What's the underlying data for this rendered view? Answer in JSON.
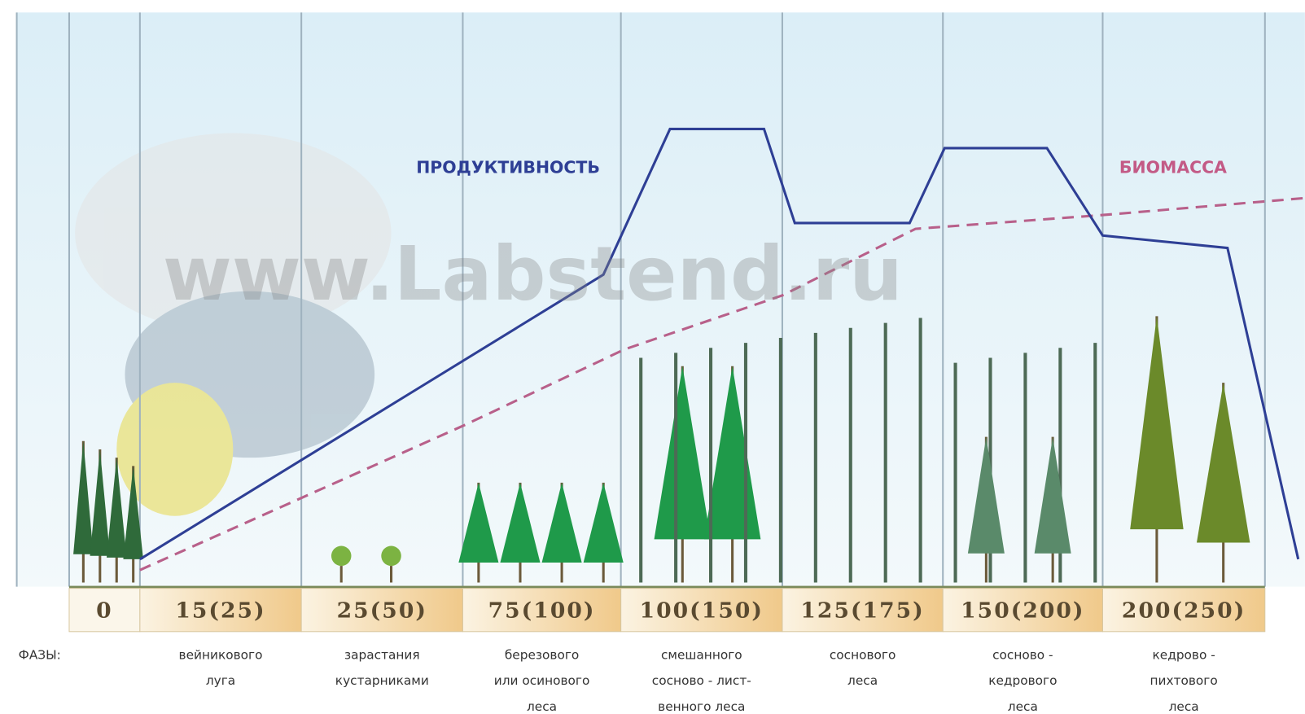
{
  "header": {
    "watermark": "www.Labstend.ru"
  },
  "curves": {
    "productivity": "ПРОДУКТИВНОСТЬ",
    "biomass": "БИОМАССА"
  },
  "periods": [
    "0",
    "15(25)",
    "25(50)",
    "75(100)",
    "100(150)",
    "125(175)",
    "150(200)",
    "200(250)"
  ],
  "phases": {
    "title": "ФАЗЫ:",
    "items": [
      [
        "вейникового",
        "луга"
      ],
      [
        "зарастания",
        "кустарниками"
      ],
      [
        "березового",
        "или осинового",
        "леса"
      ],
      [
        "смешанного",
        "сосново - лист-",
        "венного леса"
      ],
      [
        "соснового",
        "леса"
      ],
      [
        "сосново -",
        "кедрового",
        "леса"
      ],
      [
        "кедрово -",
        "пихтового",
        "леса"
      ]
    ]
  }
}
